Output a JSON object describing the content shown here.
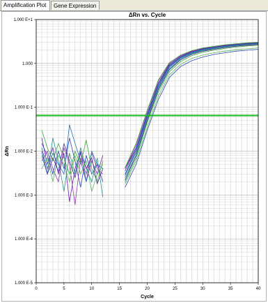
{
  "tabs": [
    {
      "label": "Amplification Plot",
      "active": true
    },
    {
      "label": "Gene Expression",
      "active": false
    }
  ],
  "chart_data": {
    "type": "line",
    "title": "ΔRn vs. Cycle",
    "xlabel": "Cycle",
    "ylabel": "ΔRn",
    "x_scale": "linear",
    "y_scale": "log",
    "xlim": [
      0,
      40
    ],
    "ylim": [
      1e-05,
      10
    ],
    "x_ticks": [
      0,
      5,
      10,
      15,
      20,
      25,
      30,
      35,
      40
    ],
    "y_ticks": [
      {
        "value": 10,
        "label": "1.000 E+1"
      },
      {
        "value": 1,
        "label": "1.000"
      },
      {
        "value": 0.1,
        "label": "1.000 E-1"
      },
      {
        "value": 0.01,
        "label": "1.000 E-2"
      },
      {
        "value": 0.001,
        "label": "1.000 E-3"
      },
      {
        "value": 0.0001,
        "label": "1.000 E-4"
      },
      {
        "value": 1e-05,
        "label": "1.000 E-5"
      }
    ],
    "grid": true,
    "threshold": {
      "value": 0.065,
      "color": "#22bb22"
    },
    "series_colors": [
      "#6a1fa8",
      "#2b47b5",
      "#2e8f8f",
      "#3aa83a",
      "#8b3aa8",
      "#1f6fb5",
      "#57b857",
      "#4b2f9a"
    ],
    "amplification": {
      "cycles": [
        16,
        18,
        20,
        22,
        24,
        26,
        28,
        30,
        32,
        34,
        36,
        38,
        40
      ],
      "series": [
        {
          "values": [
            0.004,
            0.012,
            0.07,
            0.35,
            0.9,
            1.4,
            1.8,
            2.1,
            2.3,
            2.5,
            2.7,
            2.8,
            2.9
          ]
        },
        {
          "values": [
            0.003,
            0.01,
            0.06,
            0.3,
            0.85,
            1.35,
            1.75,
            2.05,
            2.25,
            2.45,
            2.6,
            2.75,
            2.85
          ]
        },
        {
          "values": [
            0.0025,
            0.008,
            0.05,
            0.26,
            0.75,
            1.25,
            1.65,
            1.95,
            2.15,
            2.35,
            2.5,
            2.65,
            2.75
          ]
        },
        {
          "values": [
            0.002,
            0.007,
            0.045,
            0.22,
            0.65,
            1.1,
            1.5,
            1.8,
            2.0,
            2.2,
            2.35,
            2.5,
            2.6
          ]
        },
        {
          "values": [
            0.004,
            0.014,
            0.08,
            0.4,
            1.0,
            1.5,
            1.9,
            2.2,
            2.4,
            2.6,
            2.8,
            2.9,
            3.0
          ]
        },
        {
          "values": [
            0.003,
            0.011,
            0.065,
            0.32,
            0.88,
            1.38,
            1.78,
            2.08,
            2.28,
            2.48,
            2.65,
            2.8,
            2.9
          ]
        },
        {
          "values": [
            0.0018,
            0.006,
            0.035,
            0.18,
            0.55,
            0.95,
            1.3,
            1.55,
            1.75,
            1.9,
            2.05,
            2.15,
            2.25
          ]
        },
        {
          "values": [
            0.0022,
            0.008,
            0.05,
            0.25,
            0.72,
            1.2,
            1.6,
            1.9,
            2.1,
            2.3,
            2.45,
            2.6,
            2.7
          ]
        },
        {
          "values": [
            0.0035,
            0.012,
            0.07,
            0.36,
            0.95,
            1.45,
            1.85,
            2.15,
            2.35,
            2.55,
            2.7,
            2.85,
            2.95
          ]
        },
        {
          "values": [
            0.0015,
            0.005,
            0.03,
            0.15,
            0.48,
            0.85,
            1.15,
            1.4,
            1.6,
            1.75,
            1.9,
            2.0,
            2.1
          ]
        },
        {
          "values": [
            0.0028,
            0.009,
            0.055,
            0.28,
            0.8,
            1.3,
            1.7,
            2.0,
            2.2,
            2.4,
            2.55,
            2.7,
            2.8
          ]
        },
        {
          "values": [
            0.0042,
            0.015,
            0.085,
            0.42,
            1.05,
            1.55,
            1.95,
            2.25,
            2.45,
            2.65,
            2.8,
            2.95,
            3.05
          ]
        }
      ]
    },
    "noise": {
      "cycles": [
        1,
        2,
        3,
        4,
        5,
        6,
        7,
        8,
        9,
        10,
        11,
        12
      ],
      "series": [
        {
          "values": [
            0.02,
            0.005,
            0.012,
            0.003,
            0.009,
            0.0007,
            0.004,
            0.01,
            0.002,
            0.006,
            0.003,
            0.008
          ]
        },
        {
          "values": [
            0.015,
            0.008,
            0.003,
            0.01,
            0.004,
            0.02,
            0.006,
            0.0015,
            0.008,
            0.003,
            0.005,
            0.002
          ]
        },
        {
          "values": [
            0.008,
            0.003,
            0.02,
            0.006,
            0.0012,
            0.009,
            0.003,
            0.012,
            0.004,
            0.002,
            0.007,
            0.0009
          ]
        },
        {
          "values": [
            0.03,
            0.012,
            0.006,
            0.015,
            0.007,
            0.003,
            0.01,
            0.005,
            0.018,
            0.004,
            0.002,
            0.006
          ]
        },
        {
          "values": [
            0.006,
            0.01,
            0.004,
            0.002,
            0.012,
            0.005,
            0.0006,
            0.007,
            0.003,
            0.009,
            0.004,
            0.003
          ]
        },
        {
          "values": [
            0.012,
            0.004,
            0.009,
            0.005,
            0.003,
            0.04,
            0.015,
            0.006,
            0.002,
            0.01,
            0.005,
            0.004
          ]
        },
        {
          "values": [
            0.004,
            0.007,
            0.002,
            0.008,
            0.005,
            0.002,
            0.008,
            0.003,
            0.006,
            0.0012,
            0.003,
            0.005
          ]
        },
        {
          "values": [
            0.01,
            0.003,
            0.007,
            0.0035,
            0.015,
            0.006,
            0.0025,
            0.009,
            0.004,
            0.007,
            0.0018,
            0.004
          ]
        }
      ]
    }
  }
}
